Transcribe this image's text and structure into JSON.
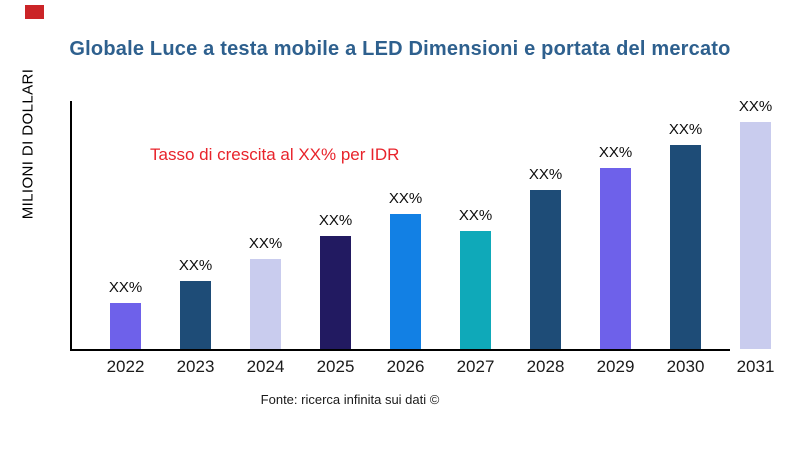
{
  "header": {
    "title": "Globale Luce a testa mobile a LED Dimensioni e portata del mercato",
    "title_color": "#2e608e"
  },
  "annotation": {
    "text": "Tasso di crescita al XX% per IDR",
    "color": "#e8232b"
  },
  "footer": {
    "source": "Fonte: ricerca infinita sui dati ©"
  },
  "corner_mark_color": "#cb2427",
  "chart_data": {
    "type": "bar",
    "title": "Globale Luce a testa mobile a LED Dimensioni e portata del mercato",
    "xlabel": "",
    "ylabel": "MILIONI DI DOLLARI",
    "categories": [
      "2022",
      "2023",
      "2024",
      "2025",
      "2026",
      "2027",
      "2028",
      "2029",
      "2030",
      "2031"
    ],
    "bar_labels": [
      "XX%",
      "XX%",
      "XX%",
      "XX%",
      "XX%",
      "XX%",
      "XX%",
      "XX%",
      "XX%",
      "XX%"
    ],
    "relative_heights": [
      46,
      68,
      90,
      113,
      135,
      118,
      159,
      181,
      204,
      227
    ],
    "bar_colors": [
      "#6e61ea",
      "#1e4c77",
      "#c9ccee",
      "#221a61",
      "#1280e4",
      "#0fa9b9",
      "#1e4c77",
      "#6e61ea",
      "#1e4c77",
      "#c9ccee"
    ],
    "annotation": "Tasso di crescita al XX% per IDR",
    "legend": false,
    "gridlines": false,
    "numeric_axis_labels": false
  }
}
